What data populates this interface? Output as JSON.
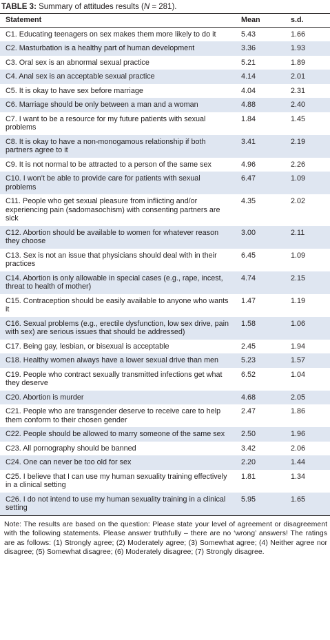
{
  "title": {
    "label": "TABLE 3:",
    "text": "Summary of attitudes results (",
    "n": "N",
    "rest": " = 281)."
  },
  "table": {
    "header": [
      "Statement",
      "Mean",
      "s.d."
    ],
    "rows": [
      [
        "C1. Educating teenagers on sex makes them more likely to do it",
        "5.43",
        "1.66"
      ],
      [
        "C2. Masturbation is a healthy part of human development",
        "3.36",
        "1.93"
      ],
      [
        "C3. Oral sex is an abnormal sexual practice",
        "5.21",
        "1.89"
      ],
      [
        "C4. Anal sex is an acceptable sexual practice",
        "4.14",
        "2.01"
      ],
      [
        "C5. It is okay to have sex before marriage",
        "4.04",
        "2.31"
      ],
      [
        "C6. Marriage should be only between a man and a woman",
        "4.88",
        "2.40"
      ],
      [
        "C7. I want to be a resource for my future patients with sexual problems",
        "1.84",
        "1.45"
      ],
      [
        "C8. It is okay to have a non-monogamous relationship if both partners agree to it",
        "3.41",
        "2.19"
      ],
      [
        "C9. It is not normal to be attracted to a person of the same sex",
        "4.96",
        "2.26"
      ],
      [
        "C10. I won’t be able to provide care for patients with sexual problems",
        "6.47",
        "1.09"
      ],
      [
        "C11. People who get sexual pleasure from inflicting and/or experiencing pain (sadomasochism) with consenting partners are sick",
        "4.35",
        "2.02"
      ],
      [
        "C12. Abortion should be available to women for whatever reason they choose",
        "3.00",
        "2.11"
      ],
      [
        "C13. Sex is not an issue that physicians should deal with in their practices",
        "6.45",
        "1.09"
      ],
      [
        "C14. Abortion is only allowable in special cases (e.g., rape, incest, threat to health of mother)",
        "4.74",
        "2.15"
      ],
      [
        "C15. Contraception should be easily available to anyone who wants it",
        "1.47",
        "1.19"
      ],
      [
        "C16. Sexual problems (e.g., erectile dysfunction, low sex drive, pain with sex) are serious issues that should be addressed)",
        "1.58",
        "1.06"
      ],
      [
        "C17. Being gay, lesbian, or bisexual is acceptable",
        "2.45",
        "1.94"
      ],
      [
        "C18. Healthy women always have a lower sexual drive than men",
        "5.23",
        "1.57"
      ],
      [
        "C19. People who contract sexually transmitted infections get what they deserve",
        "6.52",
        "1.04"
      ],
      [
        "C20. Abortion is murder",
        "4.68",
        "2.05"
      ],
      [
        "C21. People who are transgender deserve to receive care to help them conform to their chosen gender",
        "2.47",
        "1.86"
      ],
      [
        "C22. People should be allowed to marry someone of the same sex",
        "2.50",
        "1.96"
      ],
      [
        "C23. All pornography should be banned",
        "3.42",
        "2.06"
      ],
      [
        "C24. One can never be too old for sex",
        "2.20",
        "1.44"
      ],
      [
        "C25. I believe that I can use my human sexuality training effectively in a clinical setting",
        "1.81",
        "1.34"
      ],
      [
        "C26. I do not intend to use my human sexuality training in a clinical setting",
        "5.95",
        "1.65"
      ]
    ]
  },
  "note": "Note: The results are based on the question: Please state your level of agreement or disagreement with the following statements. Please answer truthfully – there are no ‘wrong’ answers! The ratings are as follows: (1) Strongly agree; (2) Moderately agree; (3) Somewhat agree; (4) Neither agree nor disagree; (5) Somewhat disagree; (6) Moderately disagree; (7) Strongly disagree."
}
